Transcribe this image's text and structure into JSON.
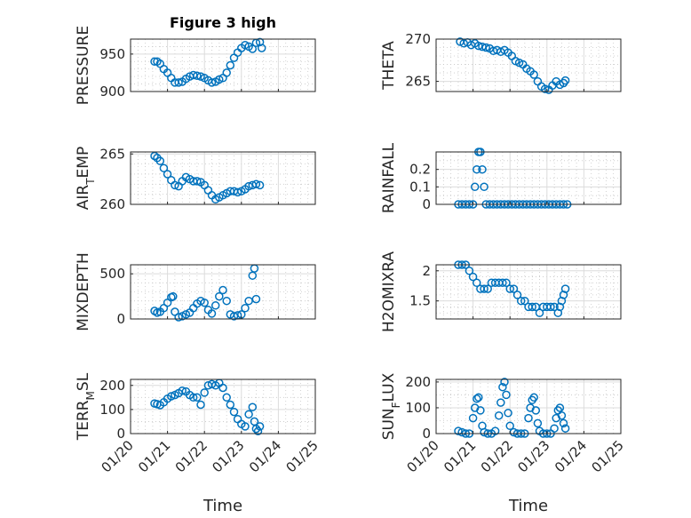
{
  "figure": {
    "title": "Figure 3 high"
  },
  "x_axis": {
    "label": "Time",
    "range": [
      0,
      5
    ],
    "ticks": [
      0,
      1,
      2,
      3,
      4,
      5
    ],
    "tick_labels": [
      "01/20",
      "01/21",
      "01/22",
      "01/23",
      "01/24",
      "01/25"
    ]
  },
  "colors": {
    "marker": "#0072BD",
    "axis": "#262626",
    "grid": "#dcdcdc"
  },
  "chart_data": [
    {
      "type": "scatter",
      "ylabel": "PRESSURE",
      "ylabel_sub": "",
      "ylabel_suffix": "",
      "ylim": [
        900,
        970
      ],
      "yticks": [
        900,
        950
      ],
      "ytick_labels": [
        "900",
        "950"
      ],
      "yminor": [
        910,
        920,
        930,
        940,
        960
      ],
      "points": [
        [
          0.65,
          940
        ],
        [
          0.72,
          940
        ],
        [
          0.8,
          937
        ],
        [
          0.9,
          930
        ],
        [
          1.0,
          925
        ],
        [
          1.1,
          918
        ],
        [
          1.2,
          912
        ],
        [
          1.3,
          912
        ],
        [
          1.4,
          913
        ],
        [
          1.5,
          917
        ],
        [
          1.6,
          920
        ],
        [
          1.7,
          922
        ],
        [
          1.8,
          921
        ],
        [
          1.9,
          920
        ],
        [
          2.0,
          918
        ],
        [
          2.1,
          915
        ],
        [
          2.2,
          912
        ],
        [
          2.3,
          913
        ],
        [
          2.4,
          916
        ],
        [
          2.5,
          918
        ],
        [
          2.6,
          925
        ],
        [
          2.7,
          935
        ],
        [
          2.8,
          945
        ],
        [
          2.9,
          952
        ],
        [
          3.0,
          958
        ],
        [
          3.1,
          962
        ],
        [
          3.2,
          960
        ],
        [
          3.3,
          957
        ],
        [
          3.4,
          965
        ],
        [
          3.5,
          966
        ],
        [
          3.55,
          958
        ]
      ]
    },
    {
      "type": "scatter",
      "ylabel": "THETA",
      "ylabel_sub": "",
      "ylabel_suffix": "",
      "ylim": [
        263.8,
        270
      ],
      "yticks": [
        265,
        270
      ],
      "ytick_labels": [
        "265",
        "270"
      ],
      "yminor": [
        266,
        267,
        268,
        269
      ],
      "points": [
        [
          0.65,
          269.7
        ],
        [
          0.75,
          269.5
        ],
        [
          0.85,
          269.6
        ],
        [
          0.95,
          269.3
        ],
        [
          1.05,
          269.5
        ],
        [
          1.15,
          269.2
        ],
        [
          1.25,
          269.1
        ],
        [
          1.35,
          269.0
        ],
        [
          1.45,
          268.9
        ],
        [
          1.55,
          268.6
        ],
        [
          1.65,
          268.7
        ],
        [
          1.75,
          268.5
        ],
        [
          1.85,
          268.7
        ],
        [
          1.95,
          268.4
        ],
        [
          2.05,
          268.0
        ],
        [
          2.15,
          267.4
        ],
        [
          2.25,
          267.2
        ],
        [
          2.35,
          267.0
        ],
        [
          2.45,
          266.5
        ],
        [
          2.55,
          266.2
        ],
        [
          2.65,
          265.8
        ],
        [
          2.75,
          265.0
        ],
        [
          2.85,
          264.4
        ],
        [
          2.95,
          264.1
        ],
        [
          3.05,
          264.0
        ],
        [
          3.15,
          264.5
        ],
        [
          3.25,
          265.0
        ],
        [
          3.35,
          264.6
        ],
        [
          3.45,
          264.8
        ],
        [
          3.5,
          265.1
        ]
      ]
    },
    {
      "type": "scatter",
      "ylabel": "AIR",
      "ylabel_sub": "T",
      "ylabel_suffix": "EMP",
      "ylim": [
        260,
        265.2
      ],
      "yticks": [
        260,
        265
      ],
      "ytick_labels": [
        "260",
        "265"
      ],
      "yminor": [
        261,
        262,
        263,
        264
      ],
      "points": [
        [
          0.65,
          264.8
        ],
        [
          0.72,
          264.6
        ],
        [
          0.8,
          264.3
        ],
        [
          0.9,
          263.6
        ],
        [
          1.0,
          263.0
        ],
        [
          1.1,
          262.4
        ],
        [
          1.2,
          261.9
        ],
        [
          1.3,
          261.8
        ],
        [
          1.4,
          262.3
        ],
        [
          1.5,
          262.7
        ],
        [
          1.6,
          262.5
        ],
        [
          1.7,
          262.3
        ],
        [
          1.8,
          262.3
        ],
        [
          1.9,
          262.2
        ],
        [
          2.0,
          261.9
        ],
        [
          2.1,
          261.4
        ],
        [
          2.2,
          260.9
        ],
        [
          2.3,
          260.5
        ],
        [
          2.4,
          260.7
        ],
        [
          2.5,
          260.9
        ],
        [
          2.6,
          261.1
        ],
        [
          2.7,
          261.3
        ],
        [
          2.8,
          261.3
        ],
        [
          2.9,
          261.2
        ],
        [
          3.0,
          261.3
        ],
        [
          3.1,
          261.5
        ],
        [
          3.2,
          261.8
        ],
        [
          3.3,
          261.9
        ],
        [
          3.4,
          262.0
        ],
        [
          3.5,
          261.9
        ]
      ]
    },
    {
      "type": "scatter",
      "ylabel": "RAINFALL",
      "ylabel_sub": "",
      "ylabel_suffix": "",
      "ylim": [
        0,
        0.3
      ],
      "yticks": [
        0,
        0.1,
        0.2
      ],
      "ytick_labels": [
        "0",
        "0.1",
        "0.2"
      ],
      "yminor": [
        0.05,
        0.15,
        0.25
      ],
      "points": [
        [
          0.6,
          0
        ],
        [
          0.7,
          0
        ],
        [
          0.8,
          0
        ],
        [
          0.9,
          0
        ],
        [
          1.0,
          0
        ],
        [
          1.05,
          0.1
        ],
        [
          1.1,
          0.2
        ],
        [
          1.15,
          0.3
        ],
        [
          1.2,
          0.3
        ],
        [
          1.25,
          0.2
        ],
        [
          1.3,
          0.1
        ],
        [
          1.35,
          0
        ],
        [
          1.45,
          0
        ],
        [
          1.55,
          0
        ],
        [
          1.65,
          0
        ],
        [
          1.75,
          0
        ],
        [
          1.85,
          0
        ],
        [
          1.95,
          0
        ],
        [
          2.05,
          0
        ],
        [
          2.15,
          0
        ],
        [
          2.25,
          0
        ],
        [
          2.35,
          0
        ],
        [
          2.45,
          0
        ],
        [
          2.55,
          0
        ],
        [
          2.65,
          0
        ],
        [
          2.75,
          0
        ],
        [
          2.85,
          0
        ],
        [
          2.95,
          0
        ],
        [
          3.05,
          0
        ],
        [
          3.15,
          0
        ],
        [
          3.25,
          0
        ],
        [
          3.35,
          0
        ],
        [
          3.45,
          0
        ],
        [
          3.55,
          0
        ]
      ]
    },
    {
      "type": "scatter",
      "ylabel": "MIXDEPTH",
      "ylabel_sub": "",
      "ylabel_suffix": "",
      "ylim": [
        0,
        600
      ],
      "yticks": [
        0,
        500
      ],
      "ytick_labels": [
        "0",
        "500"
      ],
      "yminor": [
        100,
        200,
        300,
        400
      ],
      "points": [
        [
          0.65,
          90
        ],
        [
          0.72,
          70
        ],
        [
          0.8,
          80
        ],
        [
          0.9,
          120
        ],
        [
          1.0,
          180
        ],
        [
          1.1,
          240
        ],
        [
          1.15,
          250
        ],
        [
          1.2,
          80
        ],
        [
          1.3,
          20
        ],
        [
          1.4,
          30
        ],
        [
          1.5,
          50
        ],
        [
          1.6,
          70
        ],
        [
          1.7,
          120
        ],
        [
          1.8,
          170
        ],
        [
          1.9,
          200
        ],
        [
          2.0,
          180
        ],
        [
          2.1,
          100
        ],
        [
          2.2,
          60
        ],
        [
          2.3,
          150
        ],
        [
          2.4,
          250
        ],
        [
          2.5,
          320
        ],
        [
          2.6,
          200
        ],
        [
          2.7,
          50
        ],
        [
          2.8,
          30
        ],
        [
          2.9,
          40
        ],
        [
          3.0,
          50
        ],
        [
          3.1,
          120
        ],
        [
          3.2,
          200
        ],
        [
          3.3,
          480
        ],
        [
          3.35,
          560
        ],
        [
          3.4,
          220
        ]
      ]
    },
    {
      "type": "scatter",
      "ylabel": "H2OMIXRA",
      "ylabel_sub": "",
      "ylabel_suffix": "",
      "ylim": [
        1.2,
        2.1
      ],
      "yticks": [
        1.5,
        2
      ],
      "ytick_labels": [
        "1.5",
        "2"
      ],
      "yminor": [
        1.3,
        1.4,
        1.6,
        1.7,
        1.8,
        1.9
      ],
      "points": [
        [
          0.6,
          2.1
        ],
        [
          0.7,
          2.1
        ],
        [
          0.8,
          2.1
        ],
        [
          0.9,
          2.0
        ],
        [
          1.0,
          1.9
        ],
        [
          1.1,
          1.8
        ],
        [
          1.2,
          1.7
        ],
        [
          1.3,
          1.7
        ],
        [
          1.4,
          1.7
        ],
        [
          1.5,
          1.8
        ],
        [
          1.6,
          1.8
        ],
        [
          1.7,
          1.8
        ],
        [
          1.8,
          1.8
        ],
        [
          1.9,
          1.8
        ],
        [
          2.0,
          1.7
        ],
        [
          2.1,
          1.7
        ],
        [
          2.2,
          1.6
        ],
        [
          2.3,
          1.5
        ],
        [
          2.4,
          1.5
        ],
        [
          2.5,
          1.4
        ],
        [
          2.6,
          1.4
        ],
        [
          2.7,
          1.4
        ],
        [
          2.8,
          1.3
        ],
        [
          2.9,
          1.4
        ],
        [
          3.0,
          1.4
        ],
        [
          3.1,
          1.4
        ],
        [
          3.2,
          1.4
        ],
        [
          3.3,
          1.3
        ],
        [
          3.35,
          1.4
        ],
        [
          3.4,
          1.5
        ],
        [
          3.45,
          1.6
        ],
        [
          3.5,
          1.7
        ]
      ]
    },
    {
      "type": "scatter",
      "ylabel": "TERR",
      "ylabel_sub": "M",
      "ylabel_suffix": "SL",
      "ylim": [
        0,
        225
      ],
      "yticks": [
        0,
        100,
        200
      ],
      "ytick_labels": [
        "0",
        "100",
        "200"
      ],
      "yminor": [
        50,
        150
      ],
      "points": [
        [
          0.65,
          125
        ],
        [
          0.72,
          122
        ],
        [
          0.8,
          118
        ],
        [
          0.9,
          130
        ],
        [
          1.0,
          145
        ],
        [
          1.1,
          155
        ],
        [
          1.2,
          160
        ],
        [
          1.3,
          168
        ],
        [
          1.4,
          178
        ],
        [
          1.5,
          175
        ],
        [
          1.6,
          160
        ],
        [
          1.7,
          150
        ],
        [
          1.8,
          150
        ],
        [
          1.9,
          120
        ],
        [
          2.0,
          170
        ],
        [
          2.1,
          200
        ],
        [
          2.2,
          205
        ],
        [
          2.3,
          200
        ],
        [
          2.4,
          210
        ],
        [
          2.5,
          190
        ],
        [
          2.6,
          150
        ],
        [
          2.7,
          120
        ],
        [
          2.8,
          90
        ],
        [
          2.9,
          60
        ],
        [
          3.0,
          40
        ],
        [
          3.1,
          30
        ],
        [
          3.2,
          80
        ],
        [
          3.3,
          110
        ],
        [
          3.35,
          50
        ],
        [
          3.4,
          20
        ],
        [
          3.45,
          10
        ],
        [
          3.5,
          30
        ]
      ]
    },
    {
      "type": "scatter",
      "ylabel": "SUN",
      "ylabel_sub": "F",
      "ylabel_suffix": "LUX",
      "ylim": [
        0,
        210
      ],
      "yticks": [
        0,
        100,
        200
      ],
      "ytick_labels": [
        "0",
        "100",
        "200"
      ],
      "yminor": [
        50,
        150
      ],
      "points": [
        [
          0.6,
          10
        ],
        [
          0.7,
          5
        ],
        [
          0.8,
          0
        ],
        [
          0.9,
          0
        ],
        [
          1.0,
          60
        ],
        [
          1.05,
          100
        ],
        [
          1.1,
          135
        ],
        [
          1.15,
          140
        ],
        [
          1.2,
          90
        ],
        [
          1.25,
          30
        ],
        [
          1.3,
          5
        ],
        [
          1.4,
          0
        ],
        [
          1.5,
          0
        ],
        [
          1.6,
          10
        ],
        [
          1.7,
          70
        ],
        [
          1.75,
          120
        ],
        [
          1.8,
          180
        ],
        [
          1.85,
          200
        ],
        [
          1.9,
          150
        ],
        [
          1.95,
          80
        ],
        [
          2.0,
          30
        ],
        [
          2.1,
          5
        ],
        [
          2.2,
          0
        ],
        [
          2.3,
          0
        ],
        [
          2.4,
          0
        ],
        [
          2.5,
          60
        ],
        [
          2.55,
          100
        ],
        [
          2.6,
          130
        ],
        [
          2.65,
          140
        ],
        [
          2.7,
          90
        ],
        [
          2.75,
          40
        ],
        [
          2.8,
          10
        ],
        [
          2.9,
          0
        ],
        [
          3.0,
          0
        ],
        [
          3.1,
          0
        ],
        [
          3.2,
          20
        ],
        [
          3.25,
          60
        ],
        [
          3.3,
          90
        ],
        [
          3.35,
          100
        ],
        [
          3.4,
          70
        ],
        [
          3.45,
          40
        ],
        [
          3.5,
          20
        ]
      ]
    }
  ]
}
